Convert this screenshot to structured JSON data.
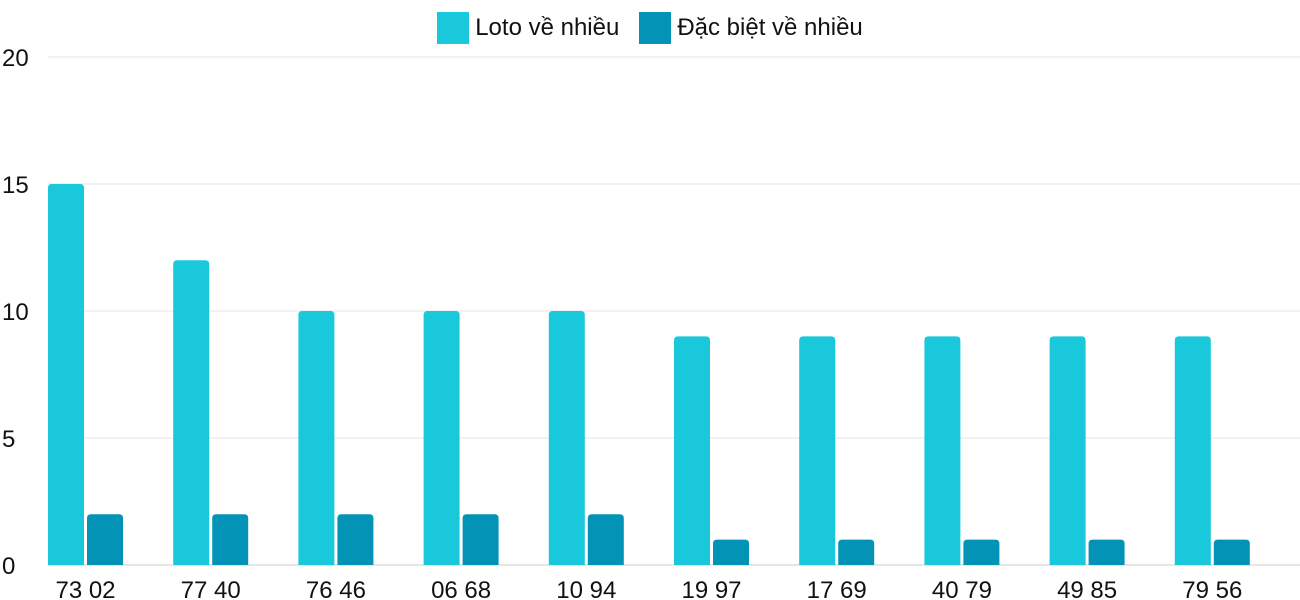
{
  "chart_data": {
    "type": "bar",
    "categories": [
      "73 02",
      "77 40",
      "76 46",
      "06 68",
      "10 94",
      "19 97",
      "17 69",
      "40 79",
      "49 85",
      "79 56"
    ],
    "series": [
      {
        "name": "Loto về nhiều",
        "color": "#1ac8db",
        "values": [
          15,
          12,
          10,
          10,
          10,
          9,
          9,
          9,
          9,
          9
        ]
      },
      {
        "name": "Đặc biệt về nhiều",
        "color": "#0393b7",
        "values": [
          2,
          2,
          2,
          2,
          2,
          1,
          1,
          1,
          1,
          1
        ]
      }
    ],
    "ylim": [
      0,
      20
    ],
    "yticks": [
      0,
      5,
      10,
      15,
      20
    ],
    "grid": true,
    "legend": "top-center"
  }
}
